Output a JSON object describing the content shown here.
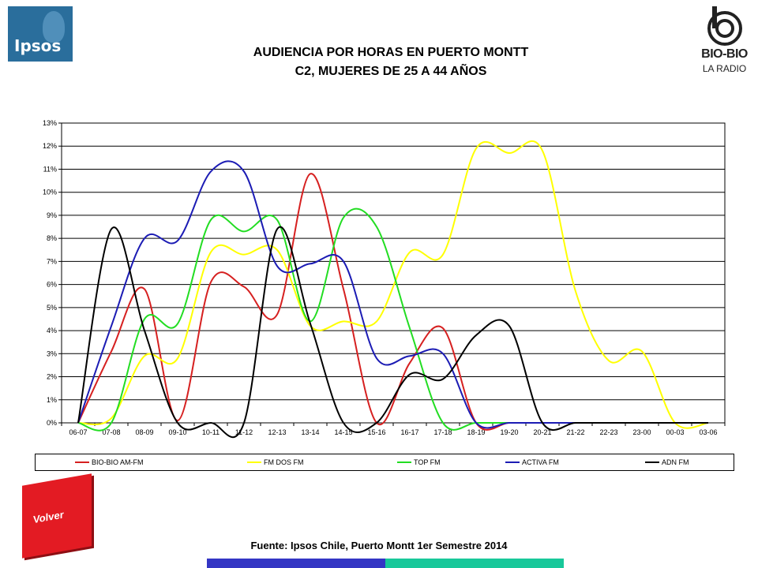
{
  "header": {
    "title_line1": "AUDIENCIA POR HORAS EN PUERTO MONTT",
    "title_line2": "C2, MUJERES DE 25 A 44 AÑOS",
    "left_logo_text": "Ipsos",
    "right_logo_name": "BIO-BIO",
    "right_logo_tagline": "LA RADIO"
  },
  "footer": {
    "source": "Fuente: Ipsos Chile, Puerto Montt 1er Semestre 2014",
    "back_button_label": "Volver"
  },
  "colors": {
    "ipsos_blue": "#2a6e9c",
    "volver_red": "#e31b23",
    "bar_left": "#3436c4",
    "bar_right": "#18c89a"
  },
  "chart_data": {
    "type": "line",
    "title": "",
    "xlabel": "",
    "ylabel": "",
    "ylim": [
      0,
      13
    ],
    "y_ticks": [
      "0%",
      "1%",
      "2%",
      "3%",
      "4%",
      "5%",
      "6%",
      "7%",
      "8%",
      "9%",
      "10%",
      "11%",
      "12%",
      "13%"
    ],
    "grid": "horizontal",
    "legend_position": "bottom",
    "categories": [
      "06-07",
      "07-08",
      "08-09",
      "09-10",
      "10-11",
      "11-12",
      "12-13",
      "13-14",
      "14-15",
      "15-16",
      "16-17",
      "17-18",
      "18-19",
      "19-20",
      "20-21",
      "21-22",
      "22-23",
      "23-00",
      "00-03",
      "03-06"
    ],
    "series": [
      {
        "name": "BIO-BIO AM-FM",
        "color": "#d62020",
        "values": [
          0,
          3.1,
          5.8,
          0.1,
          6.1,
          5.9,
          4.7,
          10.8,
          5.8,
          0,
          2.6,
          4.1,
          0,
          0,
          0,
          0,
          0,
          0,
          0,
          0
        ]
      },
      {
        "name": "FM DOS FM",
        "color": "#ffff00",
        "values": [
          0,
          0.2,
          2.9,
          2.8,
          7.4,
          7.3,
          7.5,
          4.2,
          4.4,
          4.4,
          7.4,
          7.3,
          11.9,
          11.7,
          11.8,
          5.7,
          2.7,
          3.1,
          0,
          0
        ]
      },
      {
        "name": "TOP FM",
        "color": "#22dd22",
        "values": [
          0,
          0,
          4.5,
          4.3,
          8.8,
          8.3,
          8.8,
          4.4,
          8.9,
          8.5,
          4.1,
          0,
          0,
          0,
          0,
          0,
          0,
          0,
          0,
          0
        ]
      },
      {
        "name": "ACTIVA FM",
        "color": "#1c1cb4",
        "values": [
          0,
          4.2,
          8.0,
          7.9,
          10.9,
          10.9,
          6.8,
          6.9,
          7.0,
          2.8,
          2.9,
          3.0,
          0,
          0,
          0,
          0,
          0,
          0,
          0,
          0
        ]
      },
      {
        "name": "ADN FM",
        "color": "#000000",
        "values": [
          0,
          8.4,
          4.0,
          0,
          0,
          0,
          8.4,
          4.3,
          0,
          0,
          2.1,
          1.9,
          3.8,
          4.2,
          0,
          0,
          0,
          0,
          0,
          0
        ]
      }
    ]
  }
}
